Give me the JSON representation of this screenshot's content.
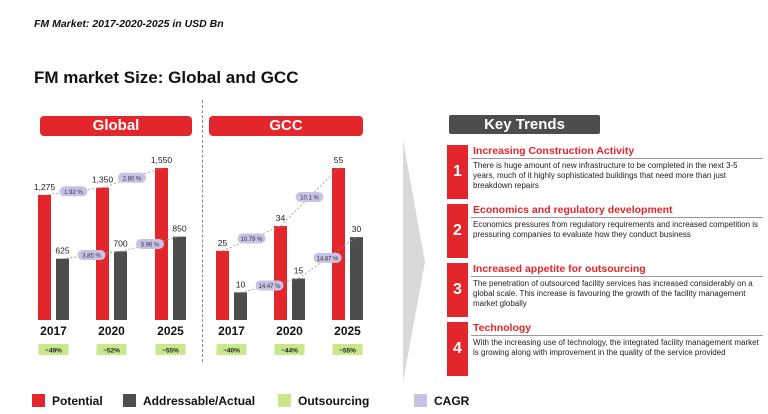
{
  "subtitle": "FM Market:  2017-2020-2025 in USD Bn",
  "title": "FM market Size: Global and GCC",
  "colors": {
    "potential": "#e3252c",
    "addressable": "#4d4d4d",
    "outsourcing": "#c9e88b",
    "cagr": "#c8c2e6"
  },
  "chart_data": [
    {
      "type": "bar",
      "title": "Global",
      "categories": [
        "2017",
        "2020",
        "2025"
      ],
      "series": [
        {
          "name": "Potential",
          "values": [
            1275,
            1350,
            1550
          ],
          "labels": [
            "1,275",
            "1,350",
            "1,550"
          ]
        },
        {
          "name": "Addressable/Actual",
          "values": [
            625,
            700,
            850
          ],
          "labels": [
            "625",
            "700",
            "850"
          ]
        }
      ],
      "outsourcing": [
        "~49%",
        "~52%",
        "~55%"
      ],
      "cagr": {
        "potential": [
          "1.92 %",
          "2.80 %"
        ],
        "addressable": [
          "3.85 %",
          "3.96 %"
        ]
      },
      "ylim": [
        0,
        1700
      ]
    },
    {
      "type": "bar",
      "title": "GCC",
      "categories": [
        "2017",
        "2020",
        "2025"
      ],
      "series": [
        {
          "name": "Potential",
          "values": [
            25,
            34,
            55
          ],
          "labels": [
            "25",
            "34",
            "55"
          ]
        },
        {
          "name": "Addressable/Actual",
          "values": [
            10,
            15,
            30
          ],
          "labels": [
            "10",
            "15",
            "30"
          ]
        }
      ],
      "outsourcing": [
        "~40%",
        "~44%",
        "~55%"
      ],
      "cagr": {
        "potential": [
          "10.79 %",
          "10.1 %"
        ],
        "addressable": [
          "14.47 %",
          "14.87 %"
        ]
      },
      "ylim": [
        0,
        60
      ]
    }
  ],
  "key_trends": {
    "header": "Key Trends",
    "items": [
      {
        "num": "1",
        "title": "Increasing Construction Activity",
        "text": "There is huge amount of new infrastructure to be completed in the next 3-5 years, much of it highly sophisticated buildings that need more than just breakdown repairs"
      },
      {
        "num": "2",
        "title": "Economics and regulatory development",
        "text": "Economics pressures from regulatory requirements and increased competition is pressuring companies to evaluate how they conduct business"
      },
      {
        "num": "3",
        "title": "Increased appetite for outsourcing",
        "text": "The penetration of outsourced facility services has increased considerably on a global scale. This increase is favouring the growth of the facility management market globally"
      },
      {
        "num": "4",
        "title": "Technology",
        "text": "With the increasing use of technology, the integrated facility management market is growing along with improvement in the quality of the service provided"
      }
    ]
  },
  "legend": [
    "Potential",
    "Addressable/Actual",
    "Outsourcing",
    "CAGR"
  ]
}
